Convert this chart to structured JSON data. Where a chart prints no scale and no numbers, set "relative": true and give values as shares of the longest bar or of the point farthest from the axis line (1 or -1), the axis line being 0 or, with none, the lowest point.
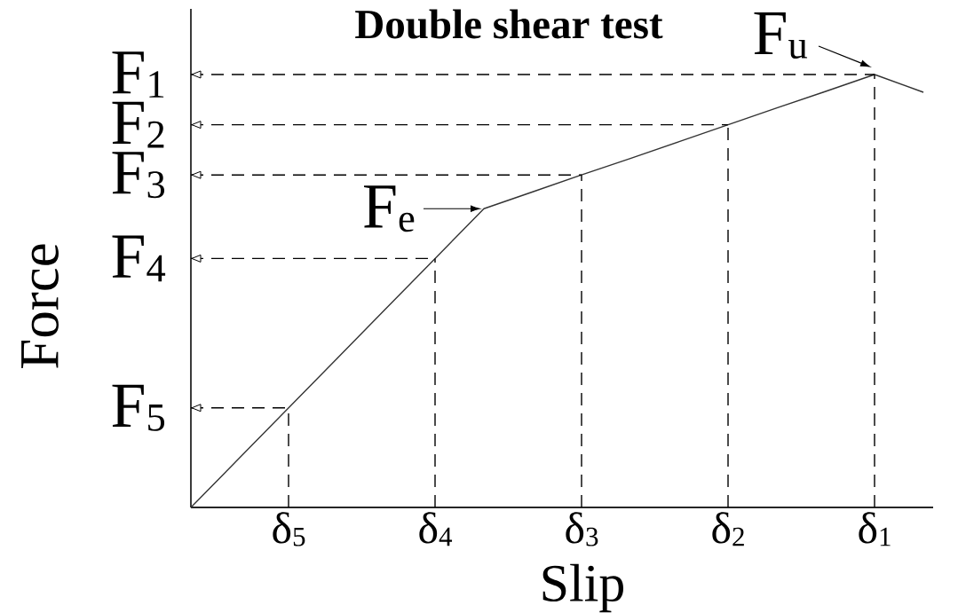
{
  "chart_data": {
    "type": "line",
    "title": "Double shear test",
    "xlabel": "Slip",
    "ylabel": "Force",
    "relative": true,
    "marker": "none",
    "categories": [
      null,
      null,
      "δ$_{5}$",
      null,
      null,
      "δ$_{4}$",
      null,
      null,
      "δ$_{3}$",
      null,
      null,
      "δ$_{2}$",
      null,
      null,
      "δ$_{1}$",
      null
    ],
    "series": [
      {
        "color": "#333333",
        "values": [
          0,
          0.115,
          0.23,
          0.345,
          0.46,
          0.575,
          0.69,
          0.729,
          0.768,
          0.806,
          0.845,
          0.884,
          0.923,
          0.961,
          1,
          0.959
        ]
      },
      {
        "name": "F$_{1}$",
        "line_style": "dashed",
        "color": "#000000",
        "values": [
          1,
          1,
          1,
          1,
          1,
          1,
          1,
          1,
          1,
          1,
          1,
          1,
          1,
          1,
          1,
          null
        ]
      },
      {
        "name": "F$_{2}$",
        "line_style": "dashed",
        "color": "#000000",
        "values": [
          0.884,
          0.884,
          0.884,
          0.884,
          0.884,
          0.884,
          0.884,
          0.884,
          0.884,
          0.884,
          0.884,
          0.884,
          null,
          null,
          null,
          null
        ]
      },
      {
        "name": "F$_{3}$",
        "line_style": "dashed",
        "color": "#000000",
        "values": [
          0.768,
          0.768,
          0.768,
          0.768,
          0.768,
          0.768,
          0.768,
          0.768,
          0.768,
          null,
          null,
          null,
          null,
          null,
          null,
          null
        ]
      },
      {
        "name": "F$_{4}$",
        "line_style": "dashed",
        "color": "#000000",
        "values": [
          0.575,
          0.575,
          0.575,
          0.575,
          0.575,
          0.575,
          null,
          null,
          null,
          null,
          null,
          null,
          null,
          null,
          null,
          null
        ]
      },
      {
        "name": "F$_{5}$",
        "line_style": "dashed",
        "color": "#000000",
        "values": [
          0.23,
          0.23,
          0.23,
          null,
          null,
          null,
          null,
          null,
          null,
          null,
          null,
          null,
          null,
          null,
          null,
          null
        ]
      },
      {
        "line_style": "dashed",
        "color": "#000000",
        "x": [
          "δ$_{5}$",
          "δ$_{5}$"
        ],
        "values": [
          0,
          0.23
        ]
      },
      {
        "line_style": "dashed",
        "color": "#000000",
        "x": [
          "δ$_{4}$",
          "δ$_{4}$"
        ],
        "values": [
          0,
          0.575
        ]
      },
      {
        "line_style": "dashed",
        "color": "#000000",
        "x": [
          "δ$_{3}$",
          "δ$_{3}$"
        ],
        "values": [
          0,
          0.768
        ]
      },
      {
        "line_style": "dashed",
        "color": "#000000",
        "x": [
          "δ$_{2}$",
          "δ$_{2}$"
        ],
        "values": [
          0,
          0.884
        ]
      },
      {
        "line_style": "dashed",
        "color": "#000000",
        "x": [
          "δ$_{1}$",
          "δ$_{1}$"
        ],
        "values": [
          0,
          1
        ]
      }
    ],
    "annotations": [
      "F$_{e}$",
      "F$_{u}$"
    ]
  }
}
